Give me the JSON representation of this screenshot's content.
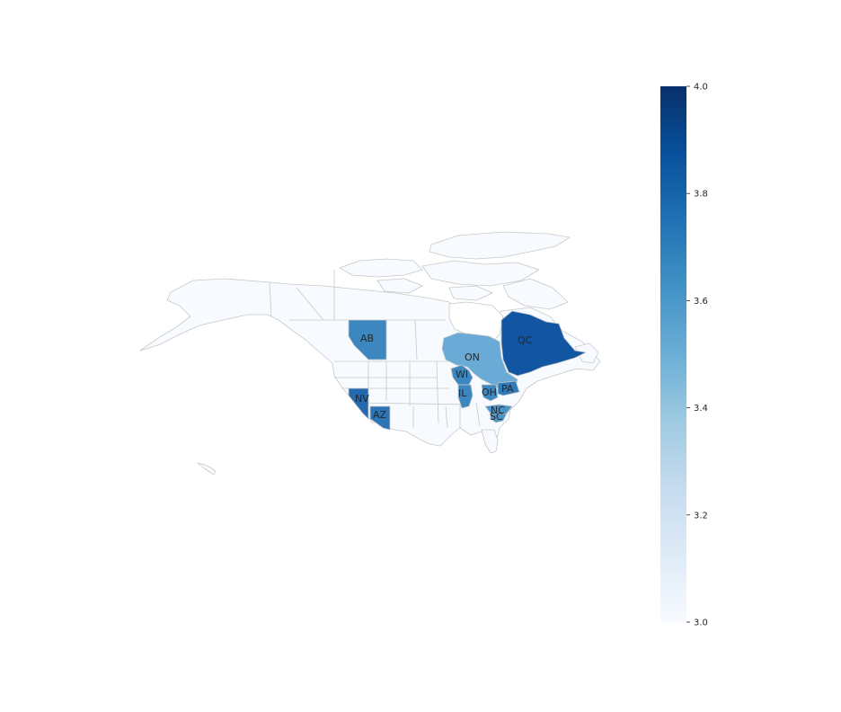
{
  "map": {
    "colormap": "Blues",
    "value_range": [
      3.0,
      4.0
    ],
    "base_color": "#f7fbff",
    "border_color": "#c8c8c8",
    "regions": [
      {
        "code": "QC",
        "value": 3.85,
        "color": "#1155a3"
      },
      {
        "code": "ON",
        "value": 3.5,
        "color": "#69aad6"
      },
      {
        "code": "AB",
        "value": 3.65,
        "color": "#3d87c0"
      },
      {
        "code": "NV",
        "value": 3.75,
        "color": "#2468ad"
      },
      {
        "code": "AZ",
        "value": 3.7,
        "color": "#2b75b6"
      },
      {
        "code": "WI",
        "value": 3.65,
        "color": "#3d87c0"
      },
      {
        "code": "IL",
        "value": 3.65,
        "color": "#3d87c0"
      },
      {
        "code": "OH",
        "value": 3.65,
        "color": "#3d87c0"
      },
      {
        "code": "PA",
        "value": 3.7,
        "color": "#2f7bb9"
      },
      {
        "code": "NC",
        "value": 3.6,
        "color": "#4b94c8"
      },
      {
        "code": "SC",
        "value": 3.6,
        "color": "#4b94c8"
      }
    ]
  },
  "colorbar": {
    "min": 3.0,
    "max": 4.0,
    "ticks": [
      "3.0",
      "3.2",
      "3.4",
      "3.6",
      "3.8",
      "4.0"
    ],
    "colors": [
      "#f7fbff",
      "#deebf7",
      "#c6dbef",
      "#9ecae1",
      "#6baed6",
      "#4292c6",
      "#2171b5",
      "#08519c",
      "#08306b"
    ]
  }
}
